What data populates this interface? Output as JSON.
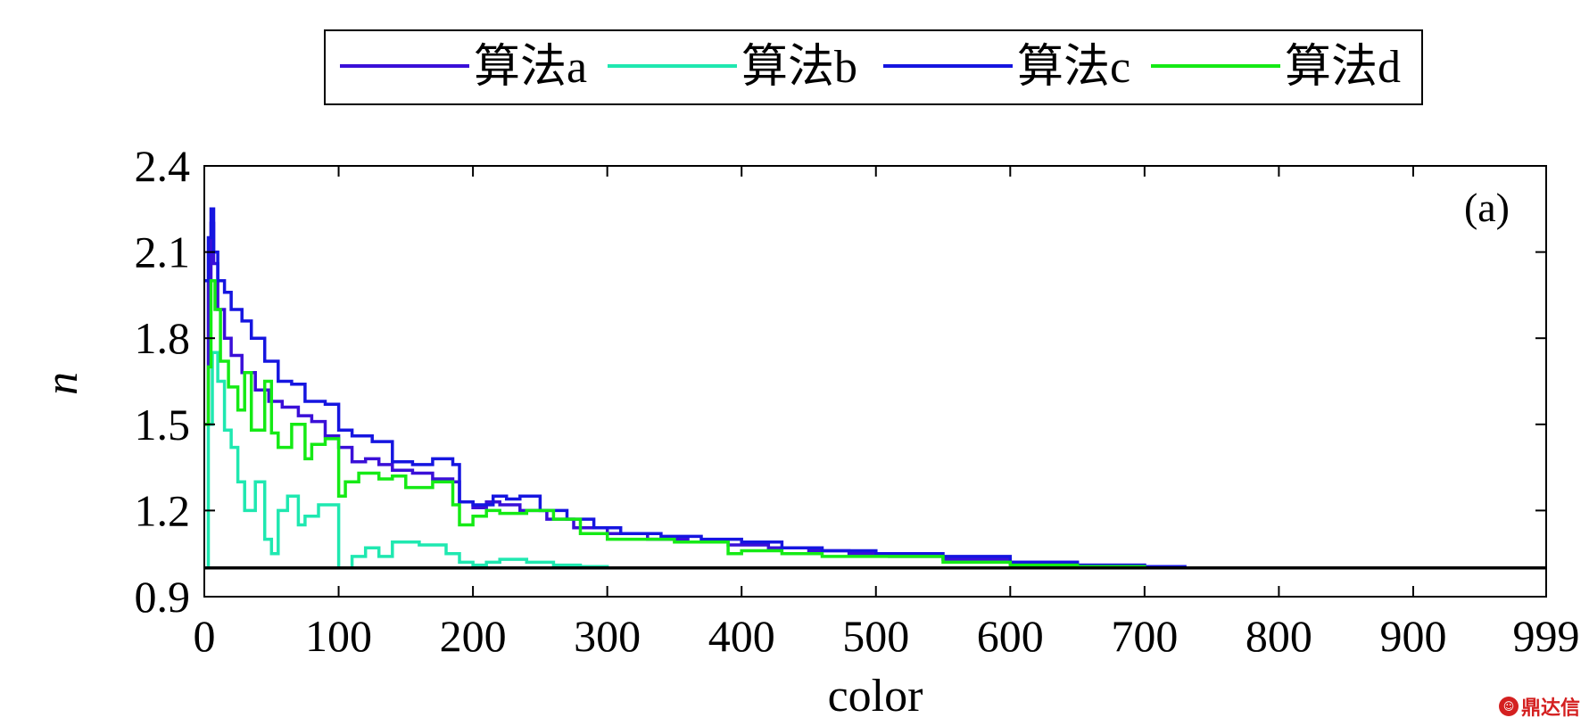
{
  "chart_data": {
    "type": "line",
    "title": "",
    "panel_label": "(a)",
    "xlabel": "color",
    "ylabel": "n",
    "xlim": [
      0,
      999
    ],
    "ylim": [
      0.9,
      2.4
    ],
    "xticks": [
      0,
      100,
      200,
      300,
      400,
      500,
      600,
      700,
      800,
      900,
      999
    ],
    "yticks": [
      0.9,
      1.2,
      1.5,
      1.8,
      2.1,
      2.4
    ],
    "ytick_labels": [
      "0.9",
      "1.2",
      "1.5",
      "1.8",
      "2.1",
      "2.4"
    ],
    "grid": false,
    "legend_position": "top",
    "reference_line": {
      "y": 1.0,
      "color": "#000000"
    },
    "series": [
      {
        "name": "算法a",
        "color": "#3a0fd8",
        "x": [
          0,
          3,
          5,
          7,
          10,
          15,
          20,
          28,
          38,
          48,
          58,
          70,
          80,
          90,
          100,
          110,
          120,
          130,
          140,
          155,
          170,
          185,
          190,
          200,
          210,
          220,
          235,
          255,
          275,
          300,
          330,
          360,
          390,
          420,
          450,
          480,
          510,
          550,
          600,
          650,
          700,
          730
        ],
        "y": [
          1.5,
          2.0,
          2.2,
          2.06,
          1.9,
          1.8,
          1.74,
          1.68,
          1.62,
          1.58,
          1.56,
          1.53,
          1.51,
          1.46,
          1.42,
          1.37,
          1.38,
          1.36,
          1.34,
          1.33,
          1.31,
          1.3,
          1.23,
          1.21,
          1.23,
          1.22,
          1.2,
          1.17,
          1.14,
          1.12,
          1.1,
          1.09,
          1.08,
          1.07,
          1.06,
          1.05,
          1.04,
          1.03,
          1.02,
          1.01,
          1.005,
          1.0
        ]
      },
      {
        "name": "算法b",
        "color": "#1fe8b0",
        "x": [
          0,
          3,
          6,
          10,
          15,
          20,
          25,
          30,
          38,
          45,
          50,
          55,
          62,
          70,
          75,
          85,
          95,
          100,
          101,
          110,
          120,
          130,
          140,
          160,
          180,
          190,
          200,
          210,
          220,
          240,
          260,
          280,
          300,
          350,
          400,
          450,
          500,
          600,
          700,
          730
        ],
        "y": [
          1.0,
          1.5,
          1.75,
          1.65,
          1.48,
          1.42,
          1.3,
          1.2,
          1.3,
          1.1,
          1.05,
          1.2,
          1.25,
          1.15,
          1.18,
          1.22,
          1.22,
          1.0,
          1.0,
          1.04,
          1.07,
          1.04,
          1.09,
          1.08,
          1.05,
          1.02,
          1.01,
          1.02,
          1.03,
          1.02,
          1.01,
          1.005,
          1.0,
          1.0,
          1.0,
          1.0,
          1.0,
          1.0,
          1.0,
          1.0
        ]
      },
      {
        "name": "算法c",
        "color": "#1515e0",
        "x": [
          0,
          3,
          5,
          7,
          10,
          15,
          20,
          28,
          35,
          45,
          55,
          65,
          75,
          85,
          90,
          100,
          110,
          125,
          140,
          155,
          170,
          185,
          190,
          200,
          215,
          225,
          235,
          250,
          270,
          290,
          310,
          340,
          370,
          400,
          430,
          460,
          500,
          550,
          600,
          650,
          700,
          730
        ],
        "y": [
          2.0,
          2.15,
          2.25,
          2.1,
          2.0,
          1.96,
          1.9,
          1.86,
          1.8,
          1.72,
          1.65,
          1.64,
          1.58,
          1.58,
          1.57,
          1.48,
          1.46,
          1.44,
          1.37,
          1.36,
          1.38,
          1.36,
          1.23,
          1.22,
          1.25,
          1.24,
          1.25,
          1.2,
          1.17,
          1.14,
          1.12,
          1.11,
          1.1,
          1.09,
          1.07,
          1.06,
          1.05,
          1.04,
          1.02,
          1.01,
          1.005,
          1.0
        ]
      },
      {
        "name": "算法d",
        "color": "#15ea15",
        "x": [
          0,
          3,
          5,
          8,
          12,
          18,
          25,
          30,
          35,
          45,
          50,
          55,
          65,
          75,
          80,
          90,
          100,
          105,
          115,
          130,
          140,
          150,
          170,
          185,
          190,
          200,
          210,
          220,
          240,
          260,
          280,
          300,
          350,
          390,
          400,
          430,
          460,
          500,
          550,
          600,
          650,
          700,
          730
        ],
        "y": [
          1.5,
          1.7,
          2.0,
          1.9,
          1.72,
          1.63,
          1.55,
          1.68,
          1.48,
          1.65,
          1.47,
          1.42,
          1.5,
          1.38,
          1.43,
          1.45,
          1.25,
          1.3,
          1.33,
          1.31,
          1.32,
          1.28,
          1.3,
          1.22,
          1.15,
          1.18,
          1.2,
          1.19,
          1.2,
          1.17,
          1.12,
          1.1,
          1.09,
          1.05,
          1.06,
          1.05,
          1.04,
          1.04,
          1.02,
          1.01,
          1.005,
          1.0,
          1.0
        ]
      }
    ]
  },
  "watermark": {
    "icon_text": "☺",
    "text": "鼎达信"
  }
}
